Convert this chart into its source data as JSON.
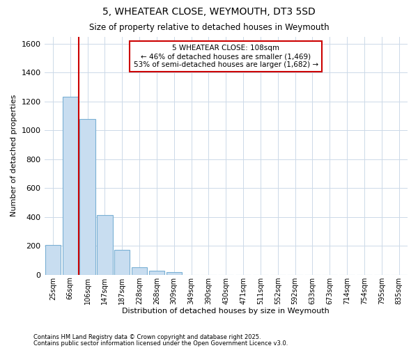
{
  "title1": "5, WHEATEAR CLOSE, WEYMOUTH, DT3 5SD",
  "title2": "Size of property relative to detached houses in Weymouth",
  "xlabel": "Distribution of detached houses by size in Weymouth",
  "ylabel": "Number of detached properties",
  "categories": [
    "25sqm",
    "66sqm",
    "106sqm",
    "147sqm",
    "187sqm",
    "228sqm",
    "268sqm",
    "309sqm",
    "349sqm",
    "390sqm",
    "430sqm",
    "471sqm",
    "511sqm",
    "552sqm",
    "592sqm",
    "633sqm",
    "673sqm",
    "714sqm",
    "754sqm",
    "795sqm",
    "835sqm"
  ],
  "values": [
    205,
    1235,
    1080,
    415,
    170,
    50,
    25,
    20,
    0,
    0,
    0,
    0,
    0,
    0,
    0,
    0,
    0,
    0,
    0,
    0,
    0
  ],
  "bar_color": "#c8ddf0",
  "bar_edge_color": "#7ab0d4",
  "grid_color": "#ccd9e8",
  "bg_color": "#ffffff",
  "red_line_x": 1.5,
  "annotation_text": "5 WHEATEAR CLOSE: 108sqm\n← 46% of detached houses are smaller (1,469)\n53% of semi-detached houses are larger (1,682) →",
  "annotation_box_color": "#cc0000",
  "ylim": [
    0,
    1650
  ],
  "yticks": [
    0,
    200,
    400,
    600,
    800,
    1000,
    1200,
    1400,
    1600
  ],
  "footer1": "Contains HM Land Registry data © Crown copyright and database right 2025.",
  "footer2": "Contains public sector information licensed under the Open Government Licence v3.0."
}
